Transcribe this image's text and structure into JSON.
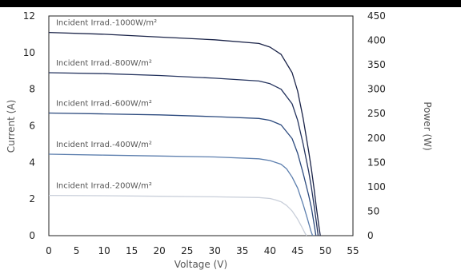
{
  "chart_data": {
    "type": "line",
    "xlabel": "Voltage (V)",
    "ylabel": "Current (A)",
    "y2label": "Power (W)",
    "xlim": [
      0,
      55
    ],
    "ylim": [
      0,
      12
    ],
    "y2lim": [
      0,
      450
    ],
    "x_ticks": [
      "0",
      "5",
      "10",
      "15",
      "20",
      "25",
      "30",
      "35",
      "40",
      "45",
      "50",
      "55"
    ],
    "y_ticks": [
      "0",
      "2",
      "4",
      "6",
      "8",
      "10",
      "12"
    ],
    "y2_ticks": [
      "0",
      "50",
      "100",
      "150",
      "200",
      "250",
      "300",
      "350",
      "400",
      "450"
    ],
    "grid": false,
    "series": [
      {
        "name": "Incident Irrad.-1000W/m²",
        "color": "#1a2348",
        "x": [
          0,
          10,
          20,
          30,
          38,
          40,
          42,
          44,
          45,
          46,
          47,
          47.5,
          48,
          48.4,
          48.8,
          49.1
        ],
        "y": [
          11.1,
          11.0,
          10.85,
          10.7,
          10.5,
          10.3,
          9.9,
          8.9,
          7.9,
          6.4,
          4.6,
          3.6,
          2.5,
          1.5,
          0.6,
          0
        ]
      },
      {
        "name": "Incident Irrad.-800W/m²",
        "color": "#24335e",
        "x": [
          0,
          10,
          20,
          30,
          38,
          40,
          42,
          44,
          45,
          46,
          47,
          47.5,
          48,
          48.4,
          48.7
        ],
        "y": [
          8.9,
          8.85,
          8.75,
          8.6,
          8.45,
          8.3,
          8.0,
          7.2,
          6.3,
          5.0,
          3.5,
          2.6,
          1.6,
          0.7,
          0
        ]
      },
      {
        "name": "Incident Irrad.-600W/m²",
        "color": "#2c4a7e",
        "x": [
          0,
          10,
          20,
          30,
          38,
          40,
          42,
          44,
          45,
          46,
          47,
          47.5,
          48,
          48.3
        ],
        "y": [
          6.7,
          6.65,
          6.6,
          6.5,
          6.4,
          6.3,
          6.05,
          5.3,
          4.5,
          3.4,
          2.2,
          1.5,
          0.6,
          0
        ]
      },
      {
        "name": "Incident Irrad.-400W/m²",
        "color": "#5d7fae",
        "x": [
          0,
          10,
          20,
          30,
          38,
          40,
          42,
          43,
          44,
          45,
          46,
          46.8,
          47.4,
          47.7
        ],
        "y": [
          4.45,
          4.4,
          4.35,
          4.3,
          4.2,
          4.1,
          3.9,
          3.65,
          3.2,
          2.6,
          1.7,
          0.9,
          0.25,
          0
        ]
      },
      {
        "name": "Incident Irrad.-200W/m²",
        "color": "#c9cfda",
        "x": [
          0,
          10,
          20,
          30,
          38,
          40,
          41,
          42,
          43,
          44,
          45,
          45.8,
          46.3,
          46.6
        ],
        "y": [
          2.2,
          2.18,
          2.15,
          2.12,
          2.08,
          2.03,
          1.95,
          1.85,
          1.65,
          1.35,
          0.9,
          0.45,
          0.15,
          0
        ]
      }
    ]
  }
}
